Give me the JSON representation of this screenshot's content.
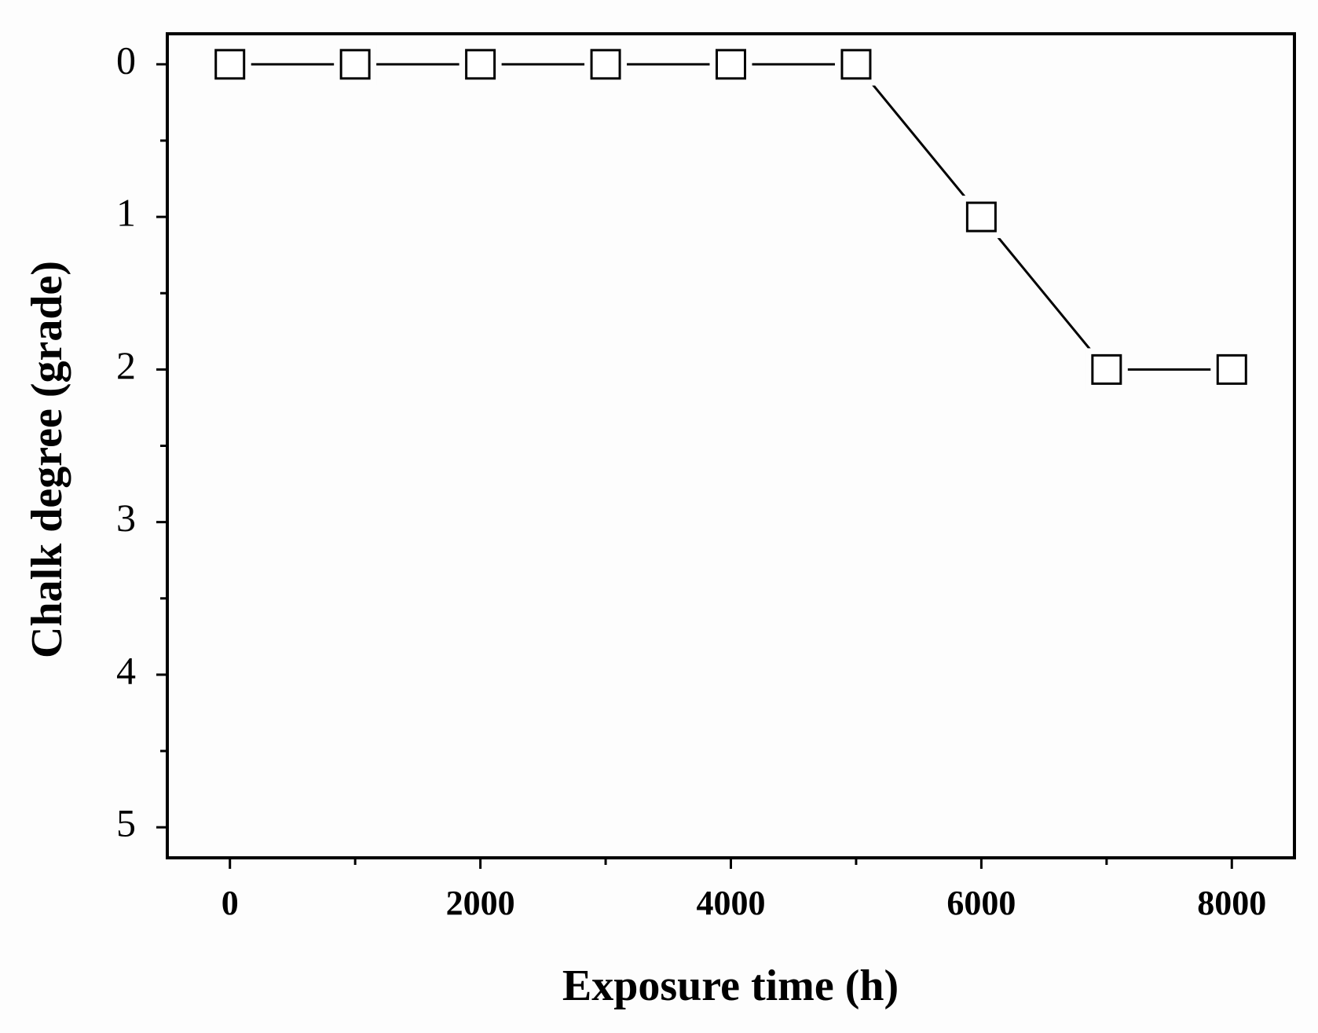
{
  "chart_data": {
    "type": "line",
    "x_label": "Exposure time (h)",
    "y_label": "Chalk degree (grade)",
    "x": [
      0,
      1000,
      2000,
      3000,
      4000,
      5000,
      6000,
      7000,
      8000
    ],
    "series": [
      {
        "color": "#000000",
        "values": [
          0,
          0,
          0,
          0,
          0,
          0,
          1,
          2,
          2
        ]
      }
    ],
    "xlim": [
      -500,
      8500
    ],
    "xticks": [
      0,
      2000,
      4000,
      6000,
      8000
    ],
    "xminorticks": [
      1000,
      3000,
      5000,
      7000
    ],
    "ylim": [
      5.2,
      -0.2
    ],
    "yticks": [
      0,
      1,
      2,
      3,
      4,
      5
    ],
    "yminorticks": [
      0.5,
      1.5,
      2.5,
      3.5,
      4.5
    ],
    "grid": false,
    "marker": "square"
  }
}
